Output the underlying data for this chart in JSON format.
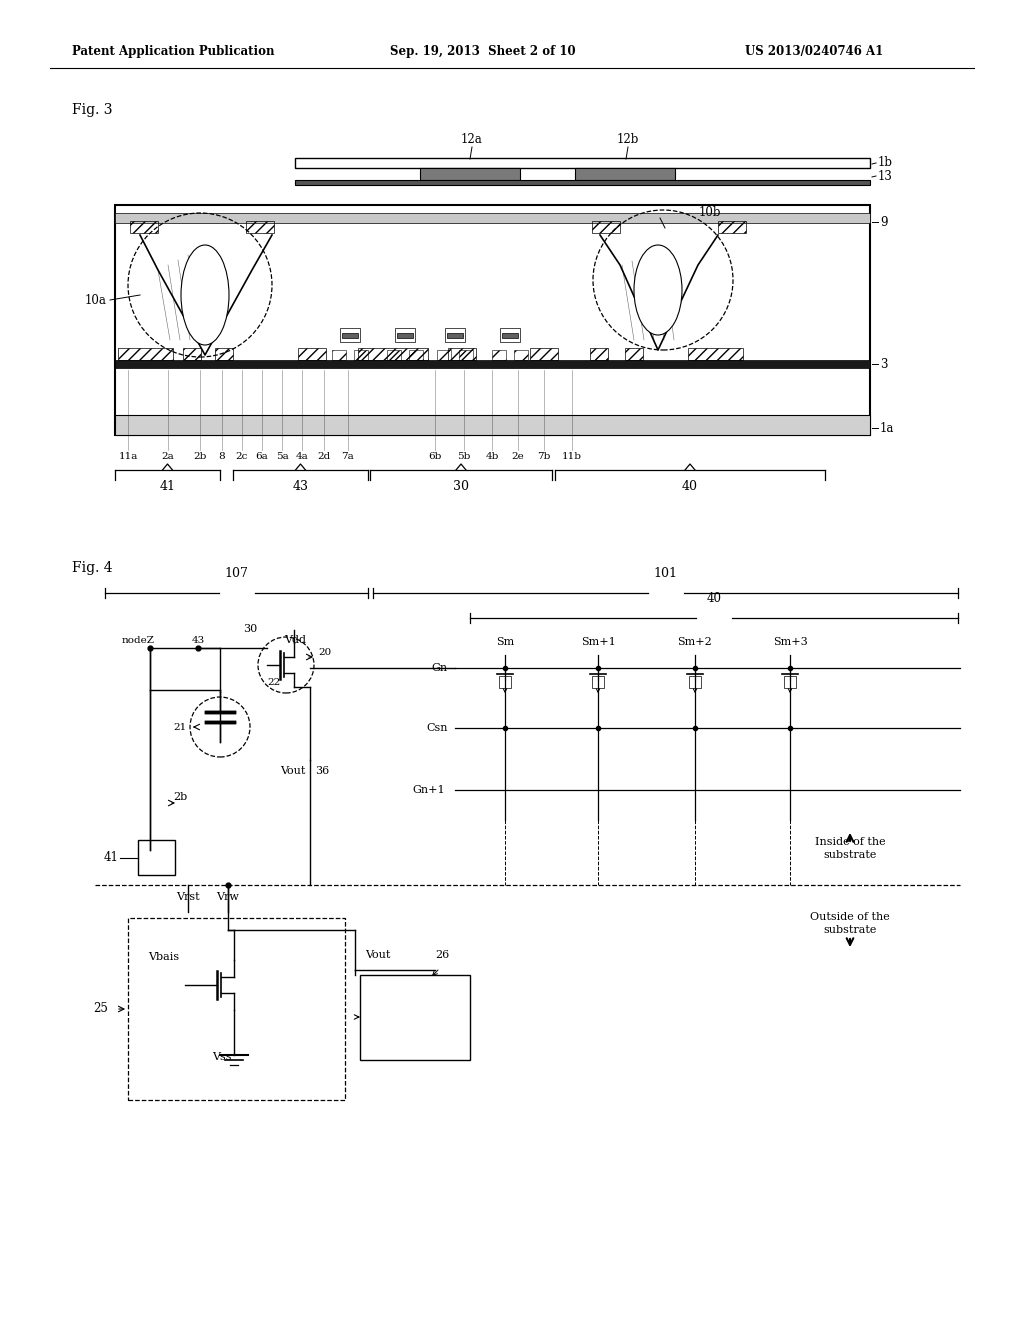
{
  "bg_color": "#ffffff",
  "header_left": "Patent Application Publication",
  "header_mid": "Sep. 19, 2013  Sheet 2 of 10",
  "header_right": "US 2013/0240746 A1",
  "fig3_label": "Fig. 3",
  "fig4_label": "Fig. 4"
}
